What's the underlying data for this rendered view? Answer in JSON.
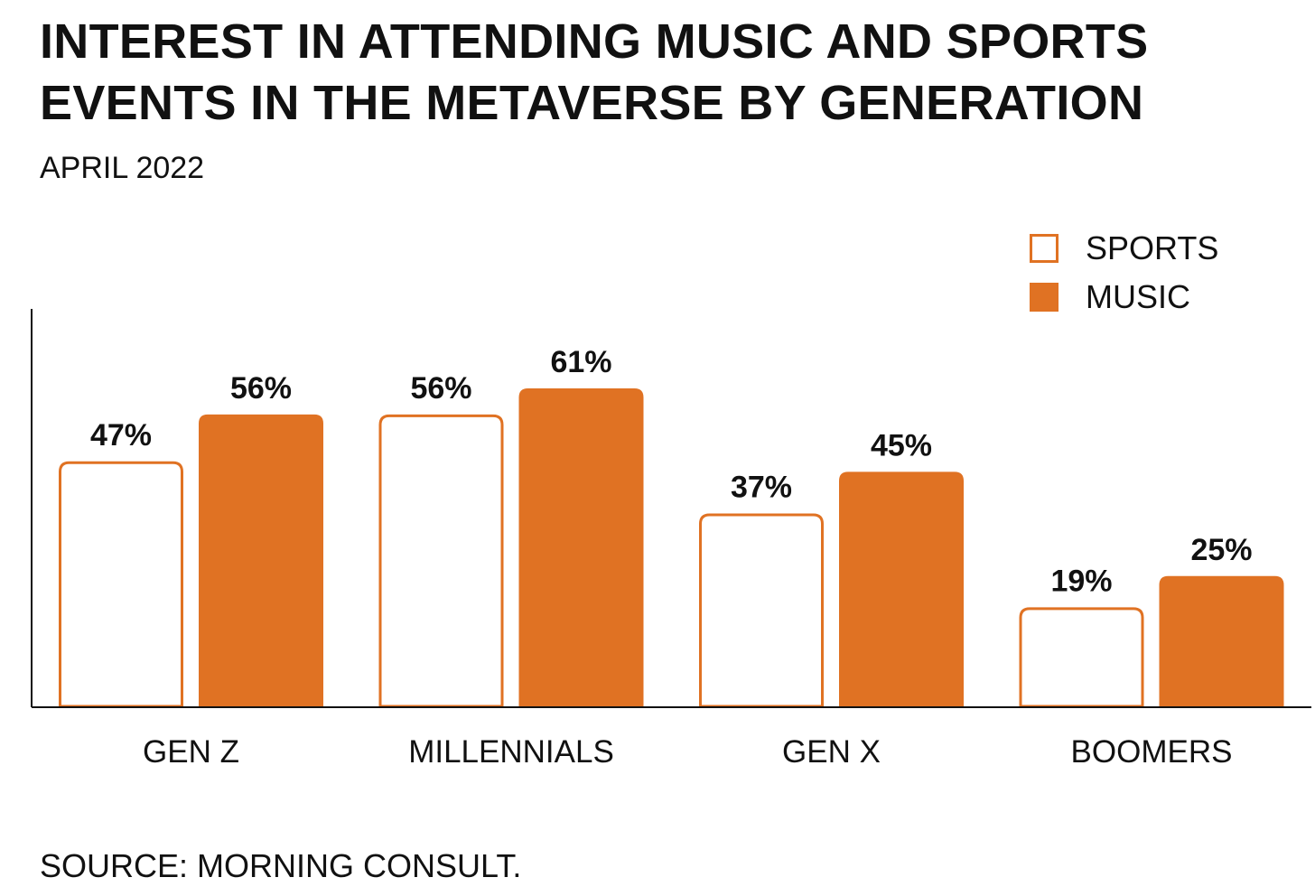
{
  "colors": {
    "music": "#e07223",
    "sports_outline": "#e07223",
    "sports_fill": "#ffffff",
    "text": "#111111"
  },
  "header": {
    "title_line1": "INTEREST IN ATTENDING MUSIC AND SPORTS",
    "title_line2": "EVENTS IN THE METAVERSE BY GENERATION",
    "subtitle": "APRIL 2022"
  },
  "legend": [
    {
      "label": "SPORTS",
      "style": "outline"
    },
    {
      "label": "MUSIC",
      "style": "filled"
    }
  ],
  "footer": {
    "source": "SOURCE: MORNING CONSULT."
  },
  "chart_data": {
    "type": "bar",
    "title": "INTEREST IN ATTENDING MUSIC AND SPORTS EVENTS IN THE METAVERSE BY GENERATION",
    "subtitle": "APRIL 2022",
    "categories": [
      "GEN Z",
      "MILLENNIALS",
      "GEN X",
      "BOOMERS"
    ],
    "series": [
      {
        "name": "SPORTS",
        "values": [
          47,
          56,
          37,
          19
        ],
        "labels": [
          "47%",
          "56%",
          "37%",
          "19%"
        ]
      },
      {
        "name": "MUSIC",
        "values": [
          56,
          61,
          45,
          25
        ],
        "labels": [
          "56%",
          "61%",
          "45%",
          "25%"
        ]
      }
    ],
    "ylim": [
      0,
      70
    ],
    "grid": false,
    "legend_position": "top-right"
  }
}
